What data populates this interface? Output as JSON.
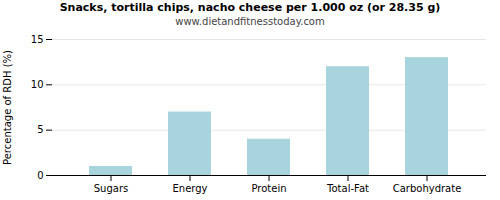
{
  "chart_data": {
    "type": "bar",
    "title": "Snacks, tortilla chips, nacho cheese per 1.000 oz (or 28.35 g)",
    "subtitle": "www.dietandfitnesstoday.com",
    "categories": [
      "Sugars",
      "Energy",
      "Protein",
      "Total-Fat",
      "Carbohydrate"
    ],
    "values": [
      1.0,
      7.0,
      4.0,
      12.0,
      13.0
    ],
    "color": "#a8d4de",
    "ylabel": "Percentage of RDH (%)",
    "ylim": [
      0,
      15
    ],
    "yticks": [
      0,
      5,
      10,
      15
    ],
    "grid": true
  }
}
